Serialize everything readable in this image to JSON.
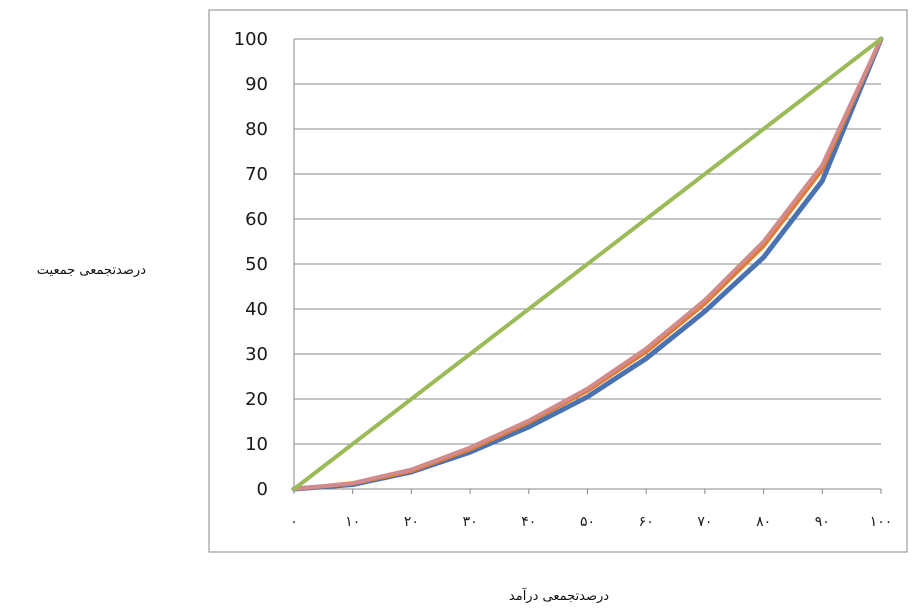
{
  "chart_data": {
    "type": "line",
    "title": "",
    "xlabel": "درصدتجمعی درآمد",
    "ylabel": "درصدتجمعی جمعیت",
    "categories": [
      "۰",
      "۱۰",
      "۲۰",
      "۳۰",
      "۴۰",
      "۵۰",
      "۶۰",
      "۷۰",
      "۸۰",
      "۹۰",
      "۱۰۰"
    ],
    "x": [
      0,
      10,
      20,
      30,
      40,
      50,
      60,
      70,
      80,
      90,
      100
    ],
    "ylim": [
      0,
      100
    ],
    "yticks": [
      0,
      10,
      20,
      30,
      40,
      50,
      60,
      70,
      80,
      90,
      100
    ],
    "grid": true,
    "legend": "none",
    "series": [
      {
        "color": "#4a72b0",
        "values": [
          0,
          1.0,
          3.8,
          8.2,
          13.8,
          20.5,
          29.0,
          39.5,
          51.5,
          68.5,
          100
        ]
      },
      {
        "color": "#e07b30",
        "values": [
          0,
          1.2,
          4.0,
          8.8,
          14.8,
          21.8,
          30.5,
          41.2,
          54.0,
          71.0,
          100
        ]
      },
      {
        "color": "#d28a8a",
        "values": [
          0,
          1.3,
          4.3,
          9.2,
          15.2,
          22.3,
          31.2,
          42.0,
          55.0,
          72.0,
          100
        ]
      },
      {
        "color": "#9bbb59",
        "values": [
          0,
          10,
          20,
          30,
          40,
          50,
          60,
          70,
          80,
          90,
          100
        ]
      }
    ]
  }
}
